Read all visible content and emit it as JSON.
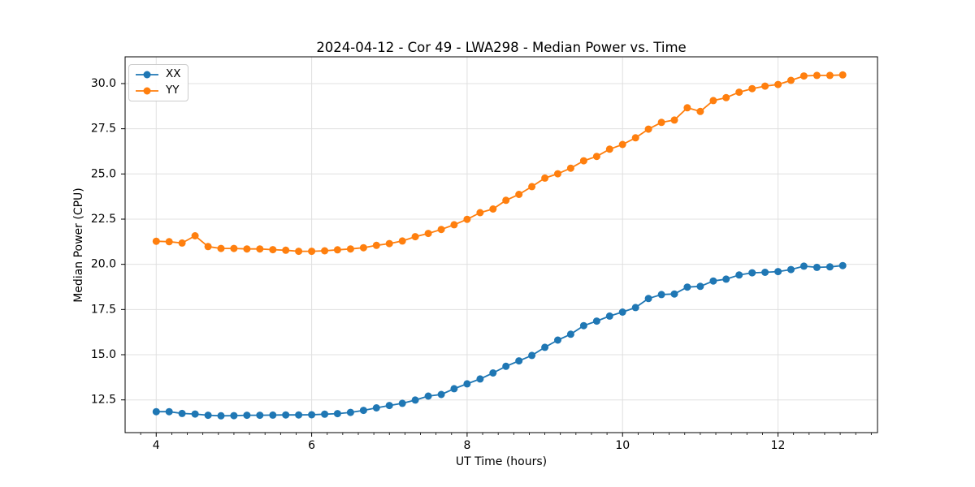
{
  "chart_data": {
    "type": "line",
    "title": "2024-04-12 - Cor 49 - LWA298 - Median Power vs. Time",
    "xlabel": "UT Time (hours)",
    "ylabel": "Median Power (CPU)",
    "xlim": [
      3.6,
      13.28
    ],
    "ylim": [
      10.69,
      31.48
    ],
    "xticks": [
      4,
      6,
      8,
      10,
      12
    ],
    "xtick_labels": [
      "4",
      "6",
      "8",
      "10",
      "12"
    ],
    "x_minor_step": 0.2,
    "yticks": [
      12.5,
      15.0,
      17.5,
      20.0,
      22.5,
      25.0,
      27.5,
      30.0
    ],
    "ytick_labels": [
      "12.5",
      "15.0",
      "17.5",
      "20.0",
      "22.5",
      "25.0",
      "27.5",
      "30.0"
    ],
    "grid": true,
    "grid_color": "#e0e0e0",
    "legend_position": "upper-left",
    "marker": "circle",
    "x": [
      4.0,
      4.167,
      4.333,
      4.5,
      4.667,
      4.833,
      5.0,
      5.167,
      5.333,
      5.5,
      5.667,
      5.833,
      6.0,
      6.167,
      6.333,
      6.5,
      6.667,
      6.833,
      7.0,
      7.167,
      7.333,
      7.5,
      7.667,
      7.833,
      8.0,
      8.167,
      8.333,
      8.5,
      8.667,
      8.833,
      9.0,
      9.167,
      9.333,
      9.5,
      9.667,
      9.833,
      10.0,
      10.167,
      10.333,
      10.5,
      10.667,
      10.833,
      11.0,
      11.167,
      11.333,
      11.5,
      11.667,
      11.833,
      12.0,
      12.167,
      12.333,
      12.5,
      12.667,
      12.833
    ],
    "series": [
      {
        "name": "XX",
        "color": "#1f77b4",
        "values": [
          11.85,
          11.85,
          11.75,
          11.72,
          11.65,
          11.62,
          11.63,
          11.65,
          11.65,
          11.66,
          11.67,
          11.67,
          11.68,
          11.71,
          11.74,
          11.81,
          11.92,
          12.06,
          12.19,
          12.31,
          12.49,
          12.71,
          12.8,
          13.12,
          13.39,
          13.66,
          13.99,
          14.36,
          14.66,
          14.96,
          15.41,
          15.81,
          16.13,
          16.61,
          16.86,
          17.14,
          17.36,
          17.61,
          18.11,
          18.33,
          18.36,
          18.74,
          18.78,
          19.08,
          19.18,
          19.41,
          19.53,
          19.56,
          19.6,
          19.71,
          19.9,
          19.83,
          19.86,
          19.93
        ]
      },
      {
        "name": "YY",
        "color": "#ff7f0e",
        "values": [
          21.28,
          21.25,
          21.18,
          21.58,
          20.98,
          20.88,
          20.88,
          20.85,
          20.85,
          20.81,
          20.78,
          20.72,
          20.72,
          20.75,
          20.8,
          20.85,
          20.92,
          21.05,
          21.15,
          21.29,
          21.53,
          21.71,
          21.93,
          22.19,
          22.49,
          22.86,
          23.06,
          23.54,
          23.87,
          24.3,
          24.77,
          25.01,
          25.32,
          25.73,
          25.97,
          26.37,
          26.63,
          27.0,
          27.48,
          27.85,
          27.98,
          28.66,
          28.46,
          29.06,
          29.22,
          29.52,
          29.72,
          29.86,
          29.95,
          30.18,
          30.42,
          30.45,
          30.45,
          30.48
        ]
      }
    ]
  }
}
